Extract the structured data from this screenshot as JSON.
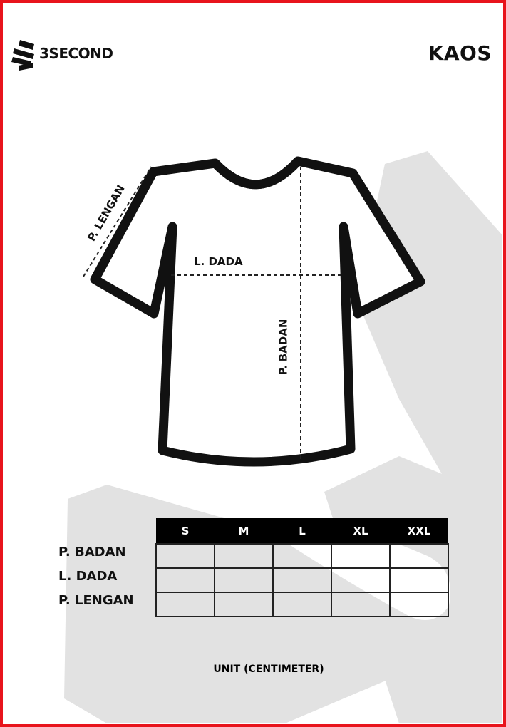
{
  "header": {
    "brand": "3SECOND",
    "title": "KAOS"
  },
  "diagram": {
    "sleeve_label": "P. LENGAN",
    "chest_label": "L. DADA",
    "body_label": "P. BADAN"
  },
  "size_table": {
    "columns": [
      "S",
      "M",
      "L",
      "XL",
      "XXL"
    ],
    "rows": [
      {
        "label": "P. BADAN",
        "values": [
          "",
          "",
          "",
          "",
          ""
        ]
      },
      {
        "label": "L. DADA",
        "values": [
          "",
          "",
          "",
          "",
          ""
        ]
      },
      {
        "label": "P. LENGAN",
        "values": [
          "",
          "",
          "",
          "",
          ""
        ]
      }
    ]
  },
  "footer": {
    "unit": "UNIT (CENTIMETER)"
  },
  "colors": {
    "border": "#e8141c",
    "watermark": "#e2e2e2",
    "ink": "#111111"
  }
}
